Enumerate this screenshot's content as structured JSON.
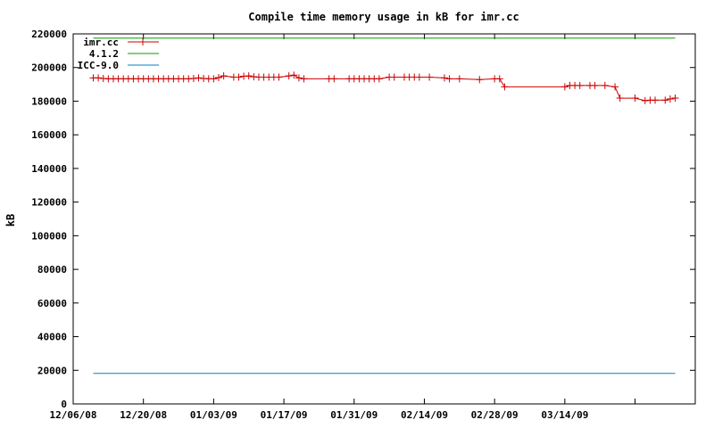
{
  "chart_data": {
    "type": "line",
    "title": "Compile time memory usage in kB for imr.cc",
    "ylabel": "kB",
    "xlabel": "",
    "ylim": [
      0,
      220000
    ],
    "xlim": [
      "2008-12-06",
      "2009-04-09"
    ],
    "yticks": [
      "0",
      "20000",
      "40000",
      "60000",
      "80000",
      "100000",
      "120000",
      "140000",
      "160000",
      "180000",
      "200000",
      "220000"
    ],
    "xticks": [
      {
        "label": "12/06/08",
        "date": "2008-12-06"
      },
      {
        "label": "12/20/08",
        "date": "2008-12-20"
      },
      {
        "label": "01/03/09",
        "date": "2009-01-03"
      },
      {
        "label": "01/17/09",
        "date": "2009-01-17"
      },
      {
        "label": "01/31/09",
        "date": "2009-01-31"
      },
      {
        "label": "02/14/09",
        "date": "2009-02-14"
      },
      {
        "label": "02/28/09",
        "date": "2009-02-28"
      },
      {
        "label": "03/14/09",
        "date": "2009-03-14"
      }
    ],
    "extra_xtick_dates": [
      "2009-03-28"
    ],
    "grid": false,
    "legend_position": "top-left",
    "series": [
      {
        "name": "imr.cc",
        "color": "#cc0000",
        "markers": true,
        "points": [
          [
            "2008-12-10",
            193800
          ],
          [
            "2008-12-11",
            193800
          ],
          [
            "2008-12-12",
            193500
          ],
          [
            "2008-12-13",
            193300
          ],
          [
            "2008-12-14",
            193300
          ],
          [
            "2008-12-15",
            193300
          ],
          [
            "2008-12-16",
            193300
          ],
          [
            "2008-12-17",
            193300
          ],
          [
            "2008-12-18",
            193300
          ],
          [
            "2008-12-19",
            193300
          ],
          [
            "2008-12-20",
            193300
          ],
          [
            "2008-12-21",
            193300
          ],
          [
            "2008-12-22",
            193300
          ],
          [
            "2008-12-23",
            193300
          ],
          [
            "2008-12-24",
            193300
          ],
          [
            "2008-12-25",
            193300
          ],
          [
            "2008-12-26",
            193300
          ],
          [
            "2008-12-27",
            193300
          ],
          [
            "2008-12-28",
            193300
          ],
          [
            "2008-12-29",
            193300
          ],
          [
            "2008-12-30",
            193500
          ],
          [
            "2008-12-31",
            193800
          ],
          [
            "2009-01-01",
            193500
          ],
          [
            "2009-01-02",
            193300
          ],
          [
            "2009-01-03",
            193300
          ],
          [
            "2009-01-04",
            194000
          ],
          [
            "2009-01-05",
            195000
          ],
          [
            "2009-01-07",
            194300
          ],
          [
            "2009-01-08",
            194300
          ],
          [
            "2009-01-09",
            194800
          ],
          [
            "2009-01-10",
            195000
          ],
          [
            "2009-01-11",
            194500
          ],
          [
            "2009-01-12",
            194300
          ],
          [
            "2009-01-13",
            194300
          ],
          [
            "2009-01-14",
            194300
          ],
          [
            "2009-01-15",
            194300
          ],
          [
            "2009-01-16",
            194300
          ],
          [
            "2009-01-18",
            195000
          ],
          [
            "2009-01-19",
            195500
          ],
          [
            "2009-01-20",
            193800
          ],
          [
            "2009-01-21",
            193300
          ],
          [
            "2009-01-26",
            193300
          ],
          [
            "2009-01-27",
            193300
          ],
          [
            "2009-01-30",
            193300
          ],
          [
            "2009-01-31",
            193300
          ],
          [
            "2009-02-01",
            193300
          ],
          [
            "2009-02-02",
            193300
          ],
          [
            "2009-02-03",
            193300
          ],
          [
            "2009-02-04",
            193300
          ],
          [
            "2009-02-05",
            193300
          ],
          [
            "2009-02-07",
            194300
          ],
          [
            "2009-02-08",
            194300
          ],
          [
            "2009-02-10",
            194300
          ],
          [
            "2009-02-11",
            194300
          ],
          [
            "2009-02-12",
            194300
          ],
          [
            "2009-02-13",
            194300
          ],
          [
            "2009-02-15",
            194300
          ],
          [
            "2009-02-18",
            193800
          ],
          [
            "2009-02-19",
            193300
          ],
          [
            "2009-02-21",
            193300
          ],
          [
            "2009-02-25",
            192800
          ],
          [
            "2009-02-28",
            193300
          ],
          [
            "2009-03-01",
            193300
          ],
          [
            "2009-03-02",
            188500
          ],
          [
            "2009-03-14",
            188500
          ],
          [
            "2009-03-15",
            189300
          ],
          [
            "2009-03-16",
            189300
          ],
          [
            "2009-03-17",
            189300
          ],
          [
            "2009-03-19",
            189300
          ],
          [
            "2009-03-20",
            189300
          ],
          [
            "2009-03-22",
            189300
          ],
          [
            "2009-03-24",
            188500
          ],
          [
            "2009-03-25",
            181800
          ],
          [
            "2009-03-28",
            181800
          ],
          [
            "2009-03-30",
            180300
          ],
          [
            "2009-03-31",
            180600
          ],
          [
            "2009-04-01",
            180600
          ],
          [
            "2009-04-03",
            180600
          ],
          [
            "2009-04-04",
            181300
          ],
          [
            "2009-04-05",
            181800
          ]
        ]
      },
      {
        "name": "4.1.2",
        "color": "#00a000",
        "markers": false,
        "points": [
          [
            "2008-12-10",
            217500
          ],
          [
            "2009-04-05",
            217500
          ]
        ]
      },
      {
        "name": "ICC-9.0",
        "color": "#0080c0",
        "markers": false,
        "points": [
          [
            "2008-12-10",
            18200
          ],
          [
            "2009-04-05",
            18200
          ]
        ]
      }
    ]
  }
}
